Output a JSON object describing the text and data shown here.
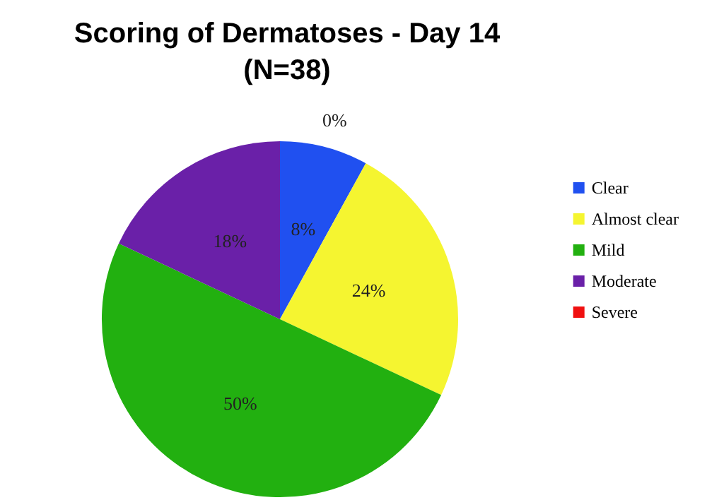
{
  "chart_data": {
    "type": "pie",
    "title": "Scoring of Dermatoses - Day 14\n(N=38)",
    "categories": [
      "Clear",
      "Almost clear",
      "Mild",
      "Moderate",
      "Severe"
    ],
    "values": [
      8,
      24,
      50,
      18,
      0
    ],
    "value_labels": [
      "8%",
      "24%",
      "50%",
      "18%",
      "0%"
    ],
    "colors": [
      "#2050f0",
      "#f5f530",
      "#22b010",
      "#6a20a8",
      "#f01010"
    ],
    "legend": "right"
  }
}
